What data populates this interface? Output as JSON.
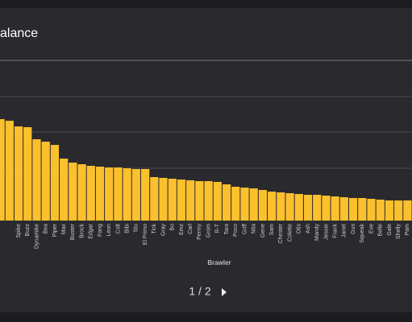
{
  "chart_data": {
    "type": "bar",
    "title": "alance",
    "x_label": "Brawler",
    "pagination": "1 / 2",
    "color": "#fbc02d",
    "ylim": [
      0,
      200
    ],
    "categories": [
      null,
      null,
      "Spike",
      "Buzz",
      "Dynamike",
      "Bea",
      "Piper",
      "Max",
      "Buster",
      "Brock",
      "Edgar",
      "Fang",
      "Leon",
      "Colt",
      "Bibi",
      "Stu",
      "El Primo",
      "Tick",
      "Gray",
      "Bo",
      "Emz",
      "Carl",
      "Penny",
      "Grom",
      "R-T",
      "Tara",
      "Poco",
      "Griff",
      "Nita",
      "Gene",
      "Sam",
      "Chester",
      "Colette",
      "Otis",
      "Ash",
      "Mandy",
      "Jessie",
      "Frank",
      "Janet",
      "Gus",
      "Squeak",
      "Eve",
      "Belle",
      "Gale",
      "Shelly",
      "Pam"
    ],
    "values": [
      126,
      124,
      117,
      116,
      101,
      98,
      94,
      77,
      72,
      70,
      68,
      67,
      66,
      66,
      65,
      64,
      64,
      54,
      53,
      52,
      51,
      50,
      49,
      49,
      48,
      45,
      42,
      41,
      40,
      38,
      36,
      35,
      34,
      33,
      32,
      32,
      31,
      30,
      29,
      28,
      28,
      27,
      26,
      25,
      25,
      25
    ]
  }
}
